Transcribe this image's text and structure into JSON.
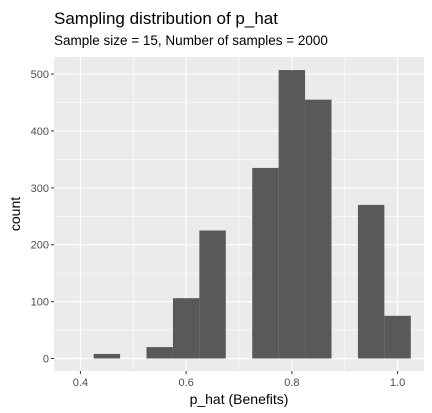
{
  "chart_data": {
    "type": "bar",
    "title": "Sampling distribution of p_hat",
    "subtitle": "Sample size = 15, Number of samples = 2000",
    "xlabel": "p_hat (Benefits)",
    "ylabel": "count",
    "x_ticks": [
      "0.4",
      "0.6",
      "0.8",
      "1.0"
    ],
    "y_ticks": [
      "0",
      "100",
      "200",
      "300",
      "400",
      "500"
    ],
    "xlim": [
      0.35,
      1.05
    ],
    "ylim": [
      -22,
      530
    ],
    "grid": true,
    "legend": "none",
    "bars": [
      {
        "x0": 0.425,
        "x1": 0.475,
        "count": 8
      },
      {
        "x0": 0.525,
        "x1": 0.575,
        "count": 20
      },
      {
        "x0": 0.575,
        "x1": 0.625,
        "count": 106
      },
      {
        "x0": 0.625,
        "x1": 0.675,
        "count": 225
      },
      {
        "x0": 0.725,
        "x1": 0.775,
        "count": 335
      },
      {
        "x0": 0.775,
        "x1": 0.825,
        "count": 507
      },
      {
        "x0": 0.825,
        "x1": 0.875,
        "count": 455
      },
      {
        "x0": 0.925,
        "x1": 0.975,
        "count": 270
      },
      {
        "x0": 0.975,
        "x1": 1.025,
        "count": 75
      }
    ],
    "colors": {
      "panel": "#EBEBEB",
      "grid_major": "#FFFFFF",
      "bar_fill": "#595959",
      "axis_text": "#4D4D4D",
      "label_text": "#000000"
    }
  }
}
